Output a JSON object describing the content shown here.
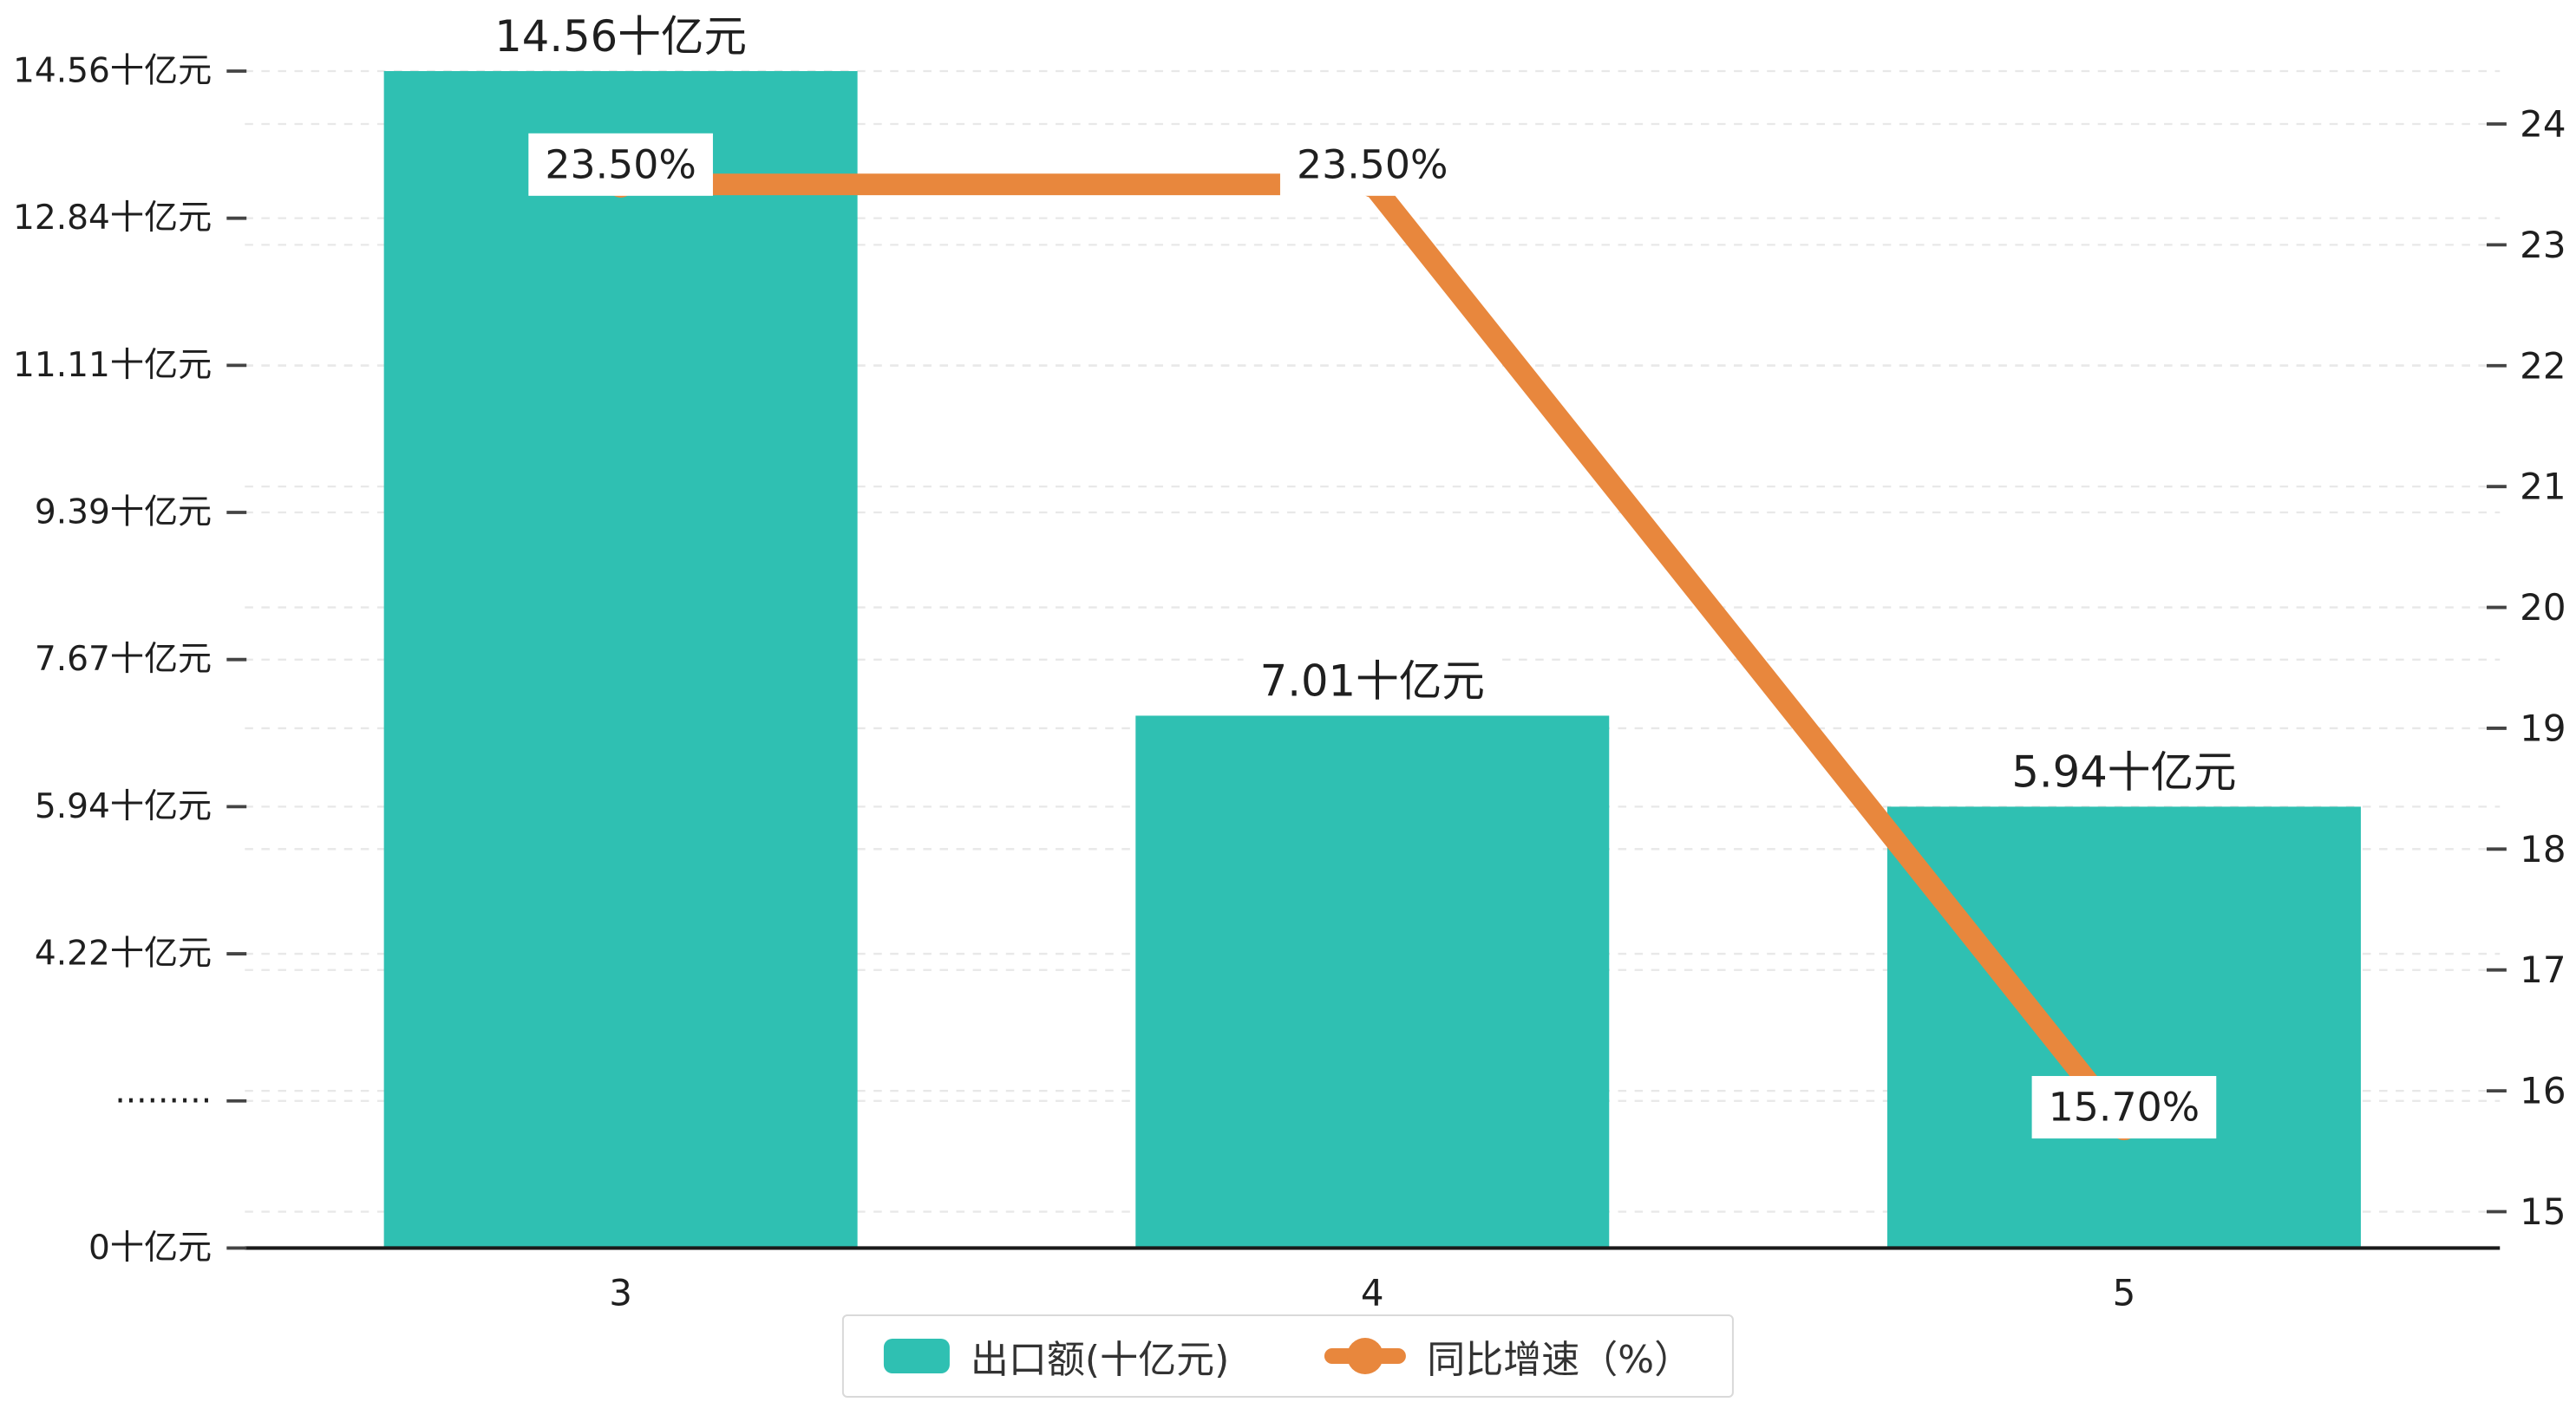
{
  "chart_data": {
    "type": "bar",
    "combo": "bar+line dual axis",
    "categories": [
      "3",
      "4",
      "5"
    ],
    "series": [
      {
        "name": "出口额(十亿元)",
        "type": "bar",
        "axis": "left",
        "color": "#2fc0b2",
        "values": [
          14.56,
          7.01,
          5.94
        ],
        "data_labels": [
          "14.56十亿元",
          "7.01十亿元",
          "5.94十亿元"
        ]
      },
      {
        "name": "同比增速（%）",
        "type": "line",
        "axis": "right",
        "color": "#e8873d",
        "values": [
          23.5,
          23.5,
          15.7
        ],
        "data_labels": [
          "23.50%",
          "23.50%",
          "15.70%"
        ]
      }
    ],
    "left_axis": {
      "tick_labels": [
        "0十亿元",
        "·········",
        "4.22十亿元",
        "5.94十亿元",
        "7.67十亿元",
        "9.39十亿元",
        "11.11十亿元",
        "12.84十亿元",
        "14.56十亿元"
      ],
      "tick_values": [
        0,
        2.49,
        4.22,
        5.94,
        7.67,
        9.39,
        11.11,
        12.84,
        14.56
      ],
      "min": 0,
      "max": 14.56
    },
    "right_axis": {
      "min": 15,
      "max": 24,
      "tick_labels": [
        "15",
        "16",
        "17",
        "18",
        "19",
        "20",
        "21",
        "22",
        "23",
        "24"
      ]
    },
    "grid": true,
    "legend_position": "bottom",
    "legend": [
      {
        "label": "出口额(十亿元)",
        "marker": "bar",
        "color": "#2fc0b2"
      },
      {
        "label": "同比增速（%）",
        "marker": "line",
        "color": "#e8873d"
      }
    ],
    "colors": {
      "bar": "#2fc0b2",
      "line": "#e8873d",
      "gridline": "#e8e8e8",
      "axis": "#1a1a1a",
      "text": "#1f1f1f",
      "label_bg": "#ffffff"
    }
  }
}
